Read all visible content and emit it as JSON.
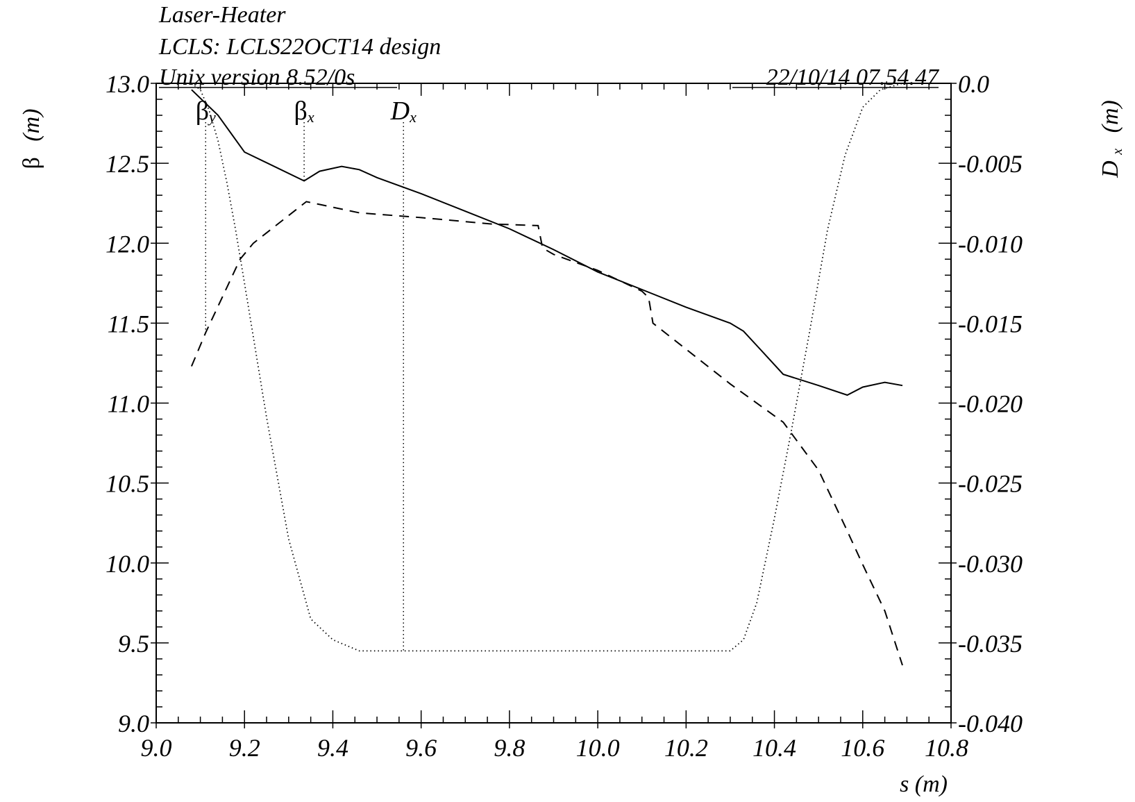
{
  "header": {
    "title": "Laser-Heater",
    "subtitle": "LCLS: LCLS22OCT14 design",
    "version": "Unix version 8.52/0s",
    "timestamp": "22/10/14  07.54.47"
  },
  "chart_data": {
    "type": "line",
    "x_axis": {
      "label": "s (m)",
      "range": [
        9.0,
        10.8
      ],
      "ticks": [
        "9.0",
        "9.2",
        "9.4",
        "9.6",
        "9.8",
        "10.0",
        "10.2",
        "10.4",
        "10.6",
        "10.8"
      ]
    },
    "y_axis_left": {
      "label_symbol": "β",
      "label_unit": "(m)",
      "range": [
        9.0,
        13.0
      ],
      "ticks": [
        "9.0",
        "9.5",
        "10.0",
        "10.5",
        "11.0",
        "11.5",
        "12.0",
        "12.5",
        "13.0"
      ]
    },
    "y_axis_right": {
      "label_symbol": "D",
      "label_sub": "x",
      "label_unit": "(m)",
      "range": [
        -0.04,
        0.0
      ],
      "ticks": [
        "-0.040",
        "-0.035",
        "-0.030",
        "-0.025",
        "-0.020",
        "-0.015",
        "-0.010",
        "-0.005",
        "0.0"
      ]
    },
    "series": [
      {
        "name": "βx",
        "symbol": "β",
        "sub": "x",
        "axis": "left",
        "style": "solid",
        "marker_s": 9.335,
        "points": [
          [
            9.08,
            12.96
          ],
          [
            9.14,
            12.8
          ],
          [
            9.2,
            12.57
          ],
          [
            9.335,
            12.39
          ],
          [
            9.37,
            12.45
          ],
          [
            9.42,
            12.48
          ],
          [
            9.46,
            12.46
          ],
          [
            9.5,
            12.41
          ],
          [
            9.6,
            12.31
          ],
          [
            9.7,
            12.2
          ],
          [
            9.8,
            12.09
          ],
          [
            9.9,
            11.96
          ],
          [
            10.0,
            11.82
          ],
          [
            10.1,
            11.71
          ],
          [
            10.2,
            11.6
          ],
          [
            10.3,
            11.5
          ],
          [
            10.33,
            11.45
          ],
          [
            10.37,
            11.33
          ],
          [
            10.42,
            11.18
          ],
          [
            10.5,
            11.11
          ],
          [
            10.565,
            11.05
          ],
          [
            10.6,
            11.1
          ],
          [
            10.65,
            11.13
          ],
          [
            10.69,
            11.11
          ]
        ]
      },
      {
        "name": "βy",
        "symbol": "β",
        "sub": "y",
        "axis": "left",
        "style": "dashed",
        "marker_s": 9.112,
        "points": [
          [
            9.08,
            11.23
          ],
          [
            9.112,
            11.44
          ],
          [
            9.19,
            11.9
          ],
          [
            9.22,
            12.0
          ],
          [
            9.34,
            12.26
          ],
          [
            9.46,
            12.19
          ],
          [
            9.6,
            12.16
          ],
          [
            9.76,
            12.12
          ],
          [
            9.865,
            12.11
          ],
          [
            9.875,
            11.97
          ],
          [
            9.9,
            11.93
          ],
          [
            10.0,
            11.83
          ],
          [
            10.1,
            11.7
          ],
          [
            10.115,
            11.66
          ],
          [
            10.125,
            11.5
          ],
          [
            10.3,
            11.12
          ],
          [
            10.42,
            10.88
          ],
          [
            10.5,
            10.58
          ],
          [
            10.56,
            10.23
          ],
          [
            10.6,
            9.99
          ],
          [
            10.65,
            9.7
          ],
          [
            10.69,
            9.36
          ]
        ]
      },
      {
        "name": "Dx",
        "symbol": "D",
        "sub": "x",
        "axis": "right",
        "style": "dotted",
        "marker_s": 9.56,
        "points": [
          [
            9.08,
            0.0
          ],
          [
            9.1,
            -0.0004
          ],
          [
            9.12,
            -0.0017
          ],
          [
            9.14,
            -0.0036
          ],
          [
            9.16,
            -0.0062
          ],
          [
            9.18,
            -0.0092
          ],
          [
            9.2,
            -0.0125
          ],
          [
            9.25,
            -0.0209
          ],
          [
            9.3,
            -0.0285
          ],
          [
            9.35,
            -0.0335
          ],
          [
            9.4,
            -0.0348
          ],
          [
            9.46,
            -0.0355
          ],
          [
            10.3,
            -0.0355
          ],
          [
            10.33,
            -0.0348
          ],
          [
            10.36,
            -0.0325
          ],
          [
            10.4,
            -0.0272
          ],
          [
            10.44,
            -0.0215
          ],
          [
            10.48,
            -0.0155
          ],
          [
            10.52,
            -0.0092
          ],
          [
            10.56,
            -0.0045
          ],
          [
            10.6,
            -0.0015
          ],
          [
            10.64,
            -0.0004
          ],
          [
            10.69,
            0.0
          ]
        ]
      }
    ]
  }
}
